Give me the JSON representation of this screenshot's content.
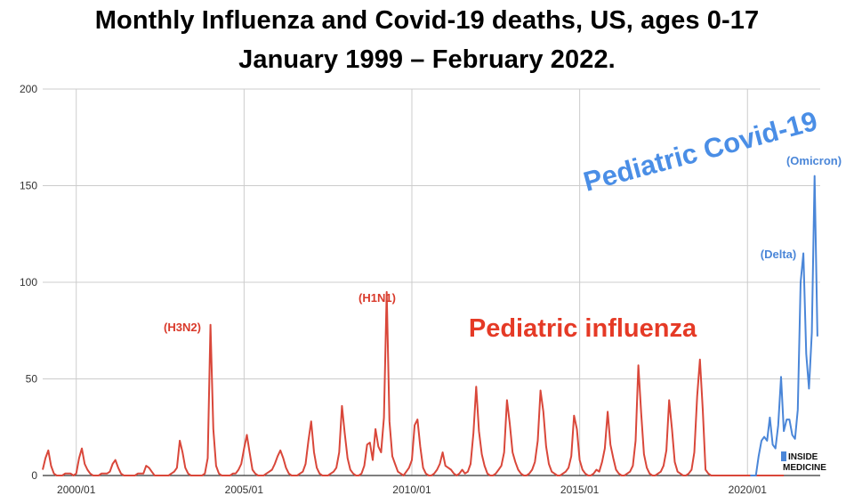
{
  "chart_data": {
    "type": "line",
    "title": "Monthly Influenza and Covid-19 deaths, US, ages 0-17",
    "subtitle": "January 1999 – February 2022.",
    "xlabel": "",
    "ylabel": "",
    "ylim": [
      0,
      200
    ],
    "yticks": [
      "0",
      "50",
      "100",
      "150",
      "200"
    ],
    "xticks": [
      {
        "label": "2000/01",
        "month_index": 12
      },
      {
        "label": "2005/01",
        "month_index": 72
      },
      {
        "label": "2010/01",
        "month_index": 132
      },
      {
        "label": "2015/01",
        "month_index": 192
      },
      {
        "label": "2020/01",
        "month_index": 252
      }
    ],
    "x_domain_months": [
      0,
      278
    ],
    "series": [
      {
        "name": "Pediatric influenza",
        "color": "#d9473a",
        "start_month_index": 0,
        "values": [
          3,
          9,
          13,
          5,
          1,
          0,
          0,
          0,
          1,
          1,
          1,
          0,
          1,
          9,
          14,
          6,
          3,
          1,
          0,
          0,
          0,
          1,
          1,
          1,
          2,
          6,
          8,
          4,
          1,
          0,
          0,
          0,
          0,
          0,
          1,
          1,
          1,
          5,
          4,
          2,
          0,
          0,
          0,
          0,
          0,
          0,
          1,
          2,
          4,
          18,
          12,
          4,
          1,
          0,
          0,
          0,
          0,
          0,
          1,
          9,
          78,
          24,
          5,
          1,
          0,
          0,
          0,
          0,
          1,
          1,
          3,
          6,
          14,
          21,
          12,
          3,
          1,
          0,
          0,
          0,
          1,
          2,
          3,
          6,
          10,
          13,
          9,
          4,
          1,
          0,
          0,
          0,
          1,
          2,
          6,
          18,
          28,
          12,
          4,
          1,
          0,
          0,
          0,
          1,
          2,
          4,
          12,
          36,
          22,
          9,
          3,
          1,
          0,
          0,
          1,
          5,
          16,
          17,
          8,
          24,
          15,
          12,
          30,
          95,
          28,
          10,
          6,
          2,
          1,
          0,
          2,
          4,
          8,
          26,
          29,
          15,
          4,
          1,
          0,
          0,
          1,
          3,
          6,
          12,
          5,
          4,
          3,
          1,
          0,
          1,
          3,
          1,
          2,
          6,
          22,
          46,
          23,
          11,
          5,
          1,
          0,
          0,
          1,
          3,
          5,
          12,
          39,
          27,
          12,
          7,
          3,
          1,
          0,
          0,
          1,
          3,
          7,
          18,
          44,
          33,
          15,
          6,
          2,
          1,
          0,
          0,
          1,
          2,
          4,
          10,
          31,
          24,
          8,
          3,
          1,
          0,
          0,
          1,
          3,
          2,
          7,
          14,
          33,
          16,
          9,
          3,
          1,
          0,
          0,
          1,
          2,
          5,
          18,
          57,
          32,
          11,
          4,
          1,
          0,
          0,
          1,
          2,
          5,
          13,
          39,
          24,
          7,
          2,
          1,
          0,
          0,
          1,
          3,
          12,
          41,
          60,
          34,
          3,
          1,
          0,
          0,
          0,
          0,
          0,
          0,
          0,
          0,
          0,
          0,
          0,
          0,
          0,
          0,
          0,
          0,
          0,
          0,
          0,
          0,
          0,
          0,
          0,
          0,
          0,
          0,
          0
        ]
      },
      {
        "name": "Pediatric Covid-19",
        "color": "#4a86d8",
        "start_month_index": 253,
        "values": [
          0,
          0,
          0,
          10,
          18,
          20,
          18,
          30,
          16,
          14,
          26,
          51,
          23,
          29,
          29,
          21,
          19,
          34,
          100,
          115,
          63,
          45,
          74,
          155,
          72
        ]
      }
    ],
    "annotations": {
      "h3n2": "(H3N2)",
      "h1n1": "(H1N1)",
      "delta": "(Delta)",
      "omicron": "(Omicron)",
      "influenza_label": "Pediatric influenza",
      "covid_label": "Pediatric Covid-19"
    },
    "grid": true,
    "legend": "none"
  },
  "logo": {
    "line1": "INSIDE",
    "line2": "MEDICINE",
    "accent": "#4a86d8"
  }
}
